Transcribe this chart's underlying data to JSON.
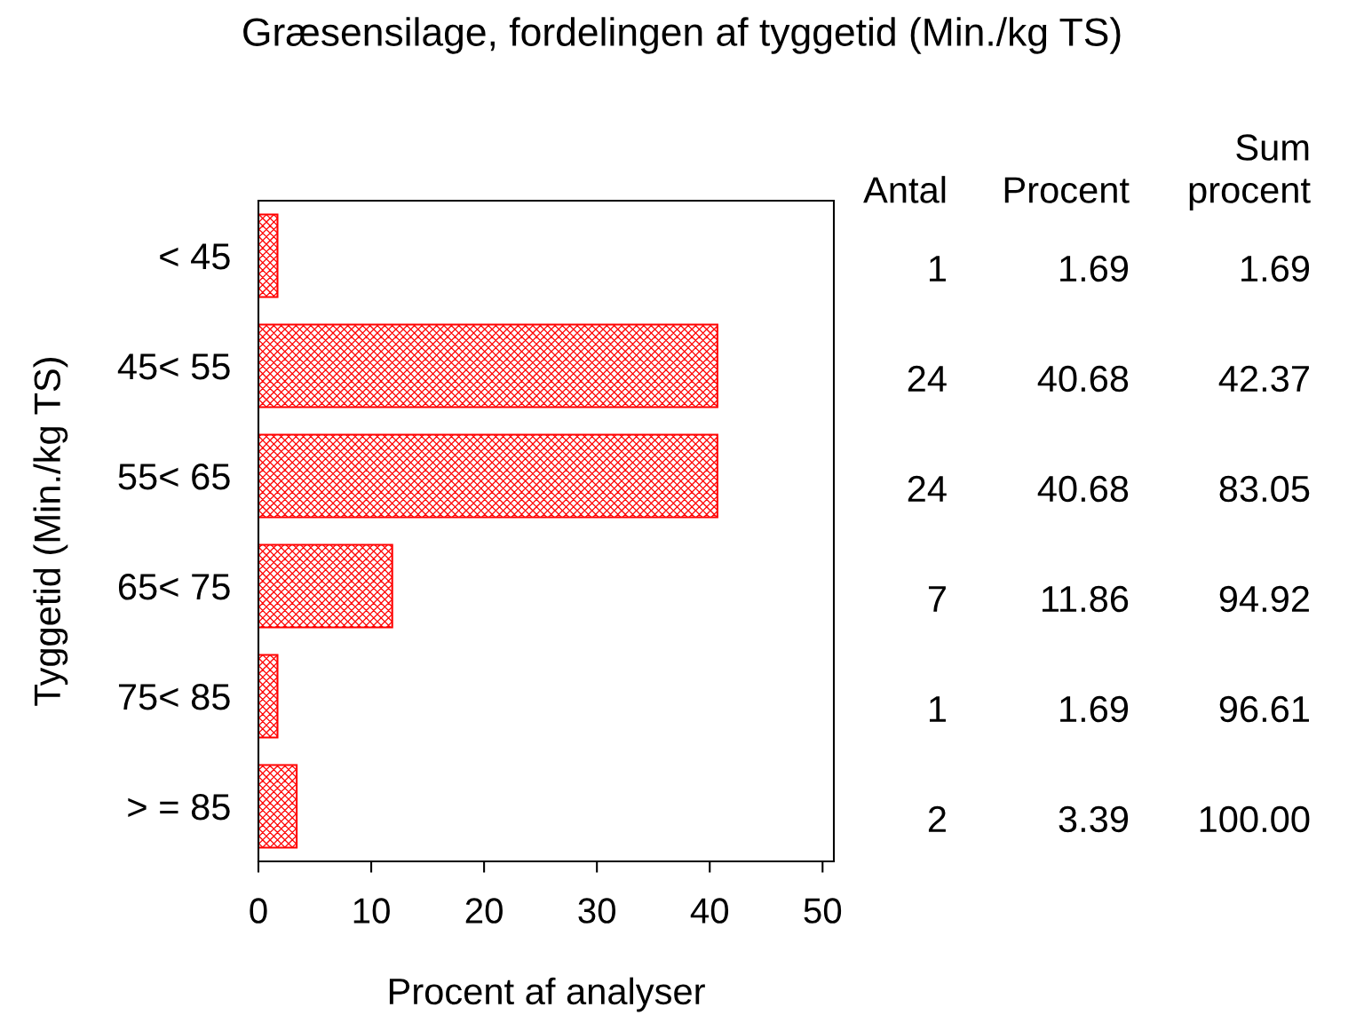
{
  "chart_data": {
    "type": "bar",
    "orientation": "horizontal",
    "title": "Græsensilage, fordelingen af tyggetid (Min./kg TS)",
    "xlabel": "Procent af analyser",
    "ylabel": "Tyggetid (Min./kg TS)",
    "categories": [
      "< 45",
      "45< 55",
      "55< 65",
      "65< 75",
      "75< 85",
      "> = 85"
    ],
    "values": [
      1.69,
      40.68,
      40.68,
      11.86,
      1.69,
      3.39
    ],
    "color": "#ff0000",
    "xlim": [
      0,
      51
    ],
    "xticks": [
      0,
      10,
      20,
      30,
      40,
      50
    ],
    "grid": false,
    "data_labels": true,
    "annotations": [
      "Antal",
      "Procent",
      "Sum\nprocent",
      "1",
      "24",
      "24",
      "7",
      "1",
      "2",
      "1.69",
      "42.37",
      "83.05",
      "94.92",
      "96.61",
      "100.00"
    ]
  }
}
